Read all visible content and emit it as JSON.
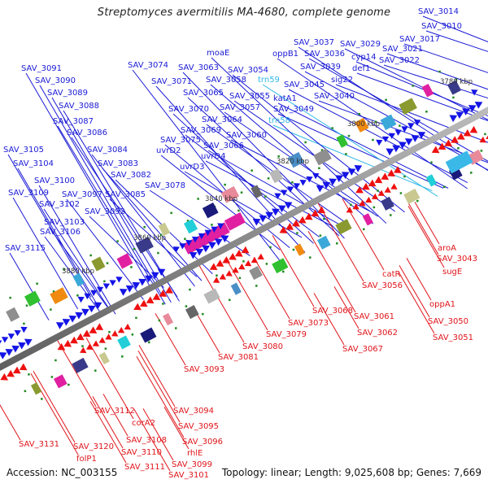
{
  "title": "Streptomyces avermitilis MA-4680, complete genome",
  "footer": {
    "accession": "Accession: NC_003155",
    "summary": "Topology: linear; Length: 9,025,608 bp; Genes: 7,669"
  },
  "colors": {
    "forward_label": "#1a1ad6",
    "rna_label": "#2fb8e6",
    "reverse_label": "#e0141a",
    "backbone": "#8a8a8a",
    "forward_arrow": "#1414e6",
    "reverse_arrow": "#ee1010",
    "tick": "#1f8a1f"
  },
  "kbp_ticks": [
    "3780 kbp",
    "3800 kbp",
    "3820 kbp",
    "3840 kbp",
    "3860 kbp",
    "3880 kbp"
  ],
  "forward_labels": [
    {
      "text": "SAV_3014",
      "type": "gene"
    },
    {
      "text": "SAV_3010",
      "type": "gene"
    },
    {
      "text": "SAV_3017",
      "type": "gene"
    },
    {
      "text": "SAV_3021",
      "type": "gene"
    },
    {
      "text": "SAV_3022",
      "type": "gene"
    },
    {
      "text": "SAV_3029",
      "type": "gene"
    },
    {
      "text": "cyp14",
      "type": "gene"
    },
    {
      "text": "def1",
      "type": "gene"
    },
    {
      "text": "SAV_3037",
      "type": "gene"
    },
    {
      "text": "SAV_3036",
      "type": "gene"
    },
    {
      "text": "SAV_3039",
      "type": "gene"
    },
    {
      "text": "sig22",
      "type": "gene"
    },
    {
      "text": "SAV_3040",
      "type": "gene"
    },
    {
      "text": "oppB1",
      "type": "gene"
    },
    {
      "text": "SAV_3045",
      "type": "gene"
    },
    {
      "text": "katA1",
      "type": "gene"
    },
    {
      "text": "SAV_3049",
      "type": "gene"
    },
    {
      "text": "trn59",
      "type": "rna"
    },
    {
      "text": "trn58",
      "type": "rna"
    },
    {
      "text": "moaE",
      "type": "gene"
    },
    {
      "text": "SAV_3054",
      "type": "gene"
    },
    {
      "text": "SAV_3055",
      "type": "gene"
    },
    {
      "text": "SAV_3057",
      "type": "gene"
    },
    {
      "text": "SAV_3058",
      "type": "gene"
    },
    {
      "text": "SAV_3060",
      "type": "gene"
    },
    {
      "text": "SAV_3063",
      "type": "gene"
    },
    {
      "text": "SAV_3065",
      "type": "gene"
    },
    {
      "text": "SAV_3064",
      "type": "gene"
    },
    {
      "text": "SAV_3066",
      "type": "gene"
    },
    {
      "text": "SAV_3069",
      "type": "gene"
    },
    {
      "text": "SAV_3070",
      "type": "gene"
    },
    {
      "text": "SAV_3071",
      "type": "gene"
    },
    {
      "text": "SAV_3074",
      "type": "gene"
    },
    {
      "text": "SAV_3075",
      "type": "gene"
    },
    {
      "text": "uvrD2",
      "type": "gene"
    },
    {
      "text": "uvrD4",
      "type": "gene"
    },
    {
      "text": "uvrD3",
      "type": "gene"
    },
    {
      "text": "SAV_3078",
      "type": "gene"
    },
    {
      "text": "SAV_3091",
      "type": "gene"
    },
    {
      "text": "SAV_3090",
      "type": "gene"
    },
    {
      "text": "SAV_3089",
      "type": "gene"
    },
    {
      "text": "SAV_3088",
      "type": "gene"
    },
    {
      "text": "SAV_3087",
      "type": "gene"
    },
    {
      "text": "SAV_3086",
      "type": "gene"
    },
    {
      "text": "SAV_3084",
      "type": "gene"
    },
    {
      "text": "SAV_3083",
      "type": "gene"
    },
    {
      "text": "SAV_3082",
      "type": "gene"
    },
    {
      "text": "SAV_3085",
      "type": "gene"
    },
    {
      "text": "SAV_3097",
      "type": "gene"
    },
    {
      "text": "SAV_3092",
      "type": "gene"
    },
    {
      "text": "SAV_3105",
      "type": "gene"
    },
    {
      "text": "SAV_3104",
      "type": "gene"
    },
    {
      "text": "SAV_3100",
      "type": "gene"
    },
    {
      "text": "SAV_3109",
      "type": "gene"
    },
    {
      "text": "SAV_3102",
      "type": "gene"
    },
    {
      "text": "SAV_3103",
      "type": "gene"
    },
    {
      "text": "SAV_3106",
      "type": "gene"
    },
    {
      "text": "SAV_3115",
      "type": "gene"
    }
  ],
  "reverse_labels": [
    {
      "text": "aroA"
    },
    {
      "text": "SAV_3043"
    },
    {
      "text": "sugE"
    },
    {
      "text": "catR"
    },
    {
      "text": "SAV_3056"
    },
    {
      "text": "oppA1"
    },
    {
      "text": "SAV_3050"
    },
    {
      "text": "SAV_3051"
    },
    {
      "text": "SAV_3068"
    },
    {
      "text": "SAV_3061"
    },
    {
      "text": "SAV_3062"
    },
    {
      "text": "SAV_3067"
    },
    {
      "text": "SAV_3073"
    },
    {
      "text": "SAV_3079"
    },
    {
      "text": "SAV_3080"
    },
    {
      "text": "SAV_3081"
    },
    {
      "text": "SAV_3093"
    },
    {
      "text": "SAV_3094"
    },
    {
      "text": "SAV_3095"
    },
    {
      "text": "SAV_3096"
    },
    {
      "text": "rhlE"
    },
    {
      "text": "SAV_3099"
    },
    {
      "text": "SAV_3101"
    },
    {
      "text": "SAV_3112"
    },
    {
      "text": "corA2"
    },
    {
      "text": "SAV_3108"
    },
    {
      "text": "SAV_3110"
    },
    {
      "text": "SAV_3111"
    },
    {
      "text": "SAV_3120"
    },
    {
      "text": "folP1"
    },
    {
      "text": "SAV_3131"
    }
  ]
}
